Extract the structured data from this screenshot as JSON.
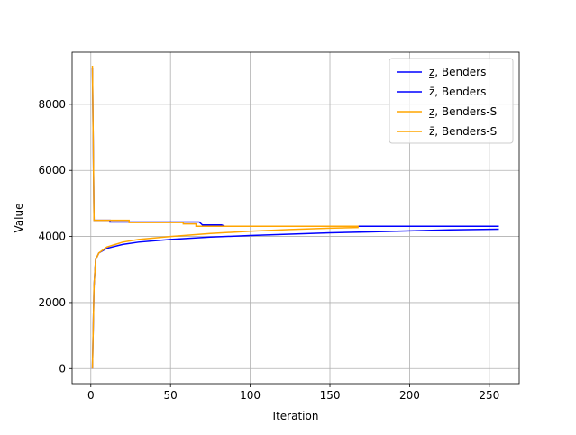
{
  "chart_data": {
    "type": "line",
    "xlabel": "Iteration",
    "ylabel": "Value",
    "xlim": [
      -11.75,
      268.75
    ],
    "ylim": [
      -456,
      9578
    ],
    "xticks": [
      0,
      50,
      100,
      150,
      200,
      250
    ],
    "yticks": [
      0,
      2000,
      4000,
      6000,
      8000
    ],
    "grid": true,
    "legend": "upper right",
    "series": [
      {
        "name": "z̲, Benders",
        "color": "#0000ff",
        "x": [
          1,
          2,
          3,
          5,
          10,
          20,
          30,
          50,
          75,
          100,
          125,
          150,
          175,
          200,
          225,
          256
        ],
        "values": [
          0,
          2500,
          3300,
          3500,
          3640,
          3760,
          3830,
          3910,
          3980,
          4030,
          4070,
          4110,
          4140,
          4170,
          4200,
          4220
        ]
      },
      {
        "name": "z̄, Benders",
        "color": "#0000ff",
        "x": [
          1,
          2,
          12,
          12,
          68,
          70,
          82,
          84,
          256
        ],
        "values": [
          9100,
          4490,
          4490,
          4440,
          4440,
          4350,
          4350,
          4310,
          4310
        ]
      },
      {
        "name": "z̲, Benders-S",
        "color": "#ffa500",
        "x": [
          1,
          2,
          3,
          5,
          10,
          20,
          30,
          50,
          75,
          100,
          125,
          150,
          168
        ],
        "values": [
          0,
          2500,
          3300,
          3500,
          3680,
          3830,
          3910,
          4000,
          4090,
          4160,
          4210,
          4250,
          4270
        ]
      },
      {
        "name": "z̄, Benders-S",
        "color": "#ffa500",
        "x": [
          1,
          2,
          24,
          24,
          58,
          58,
          66,
          66,
          168
        ],
        "values": [
          9170,
          4490,
          4490,
          4420,
          4420,
          4380,
          4380,
          4310,
          4310
        ]
      }
    ]
  }
}
